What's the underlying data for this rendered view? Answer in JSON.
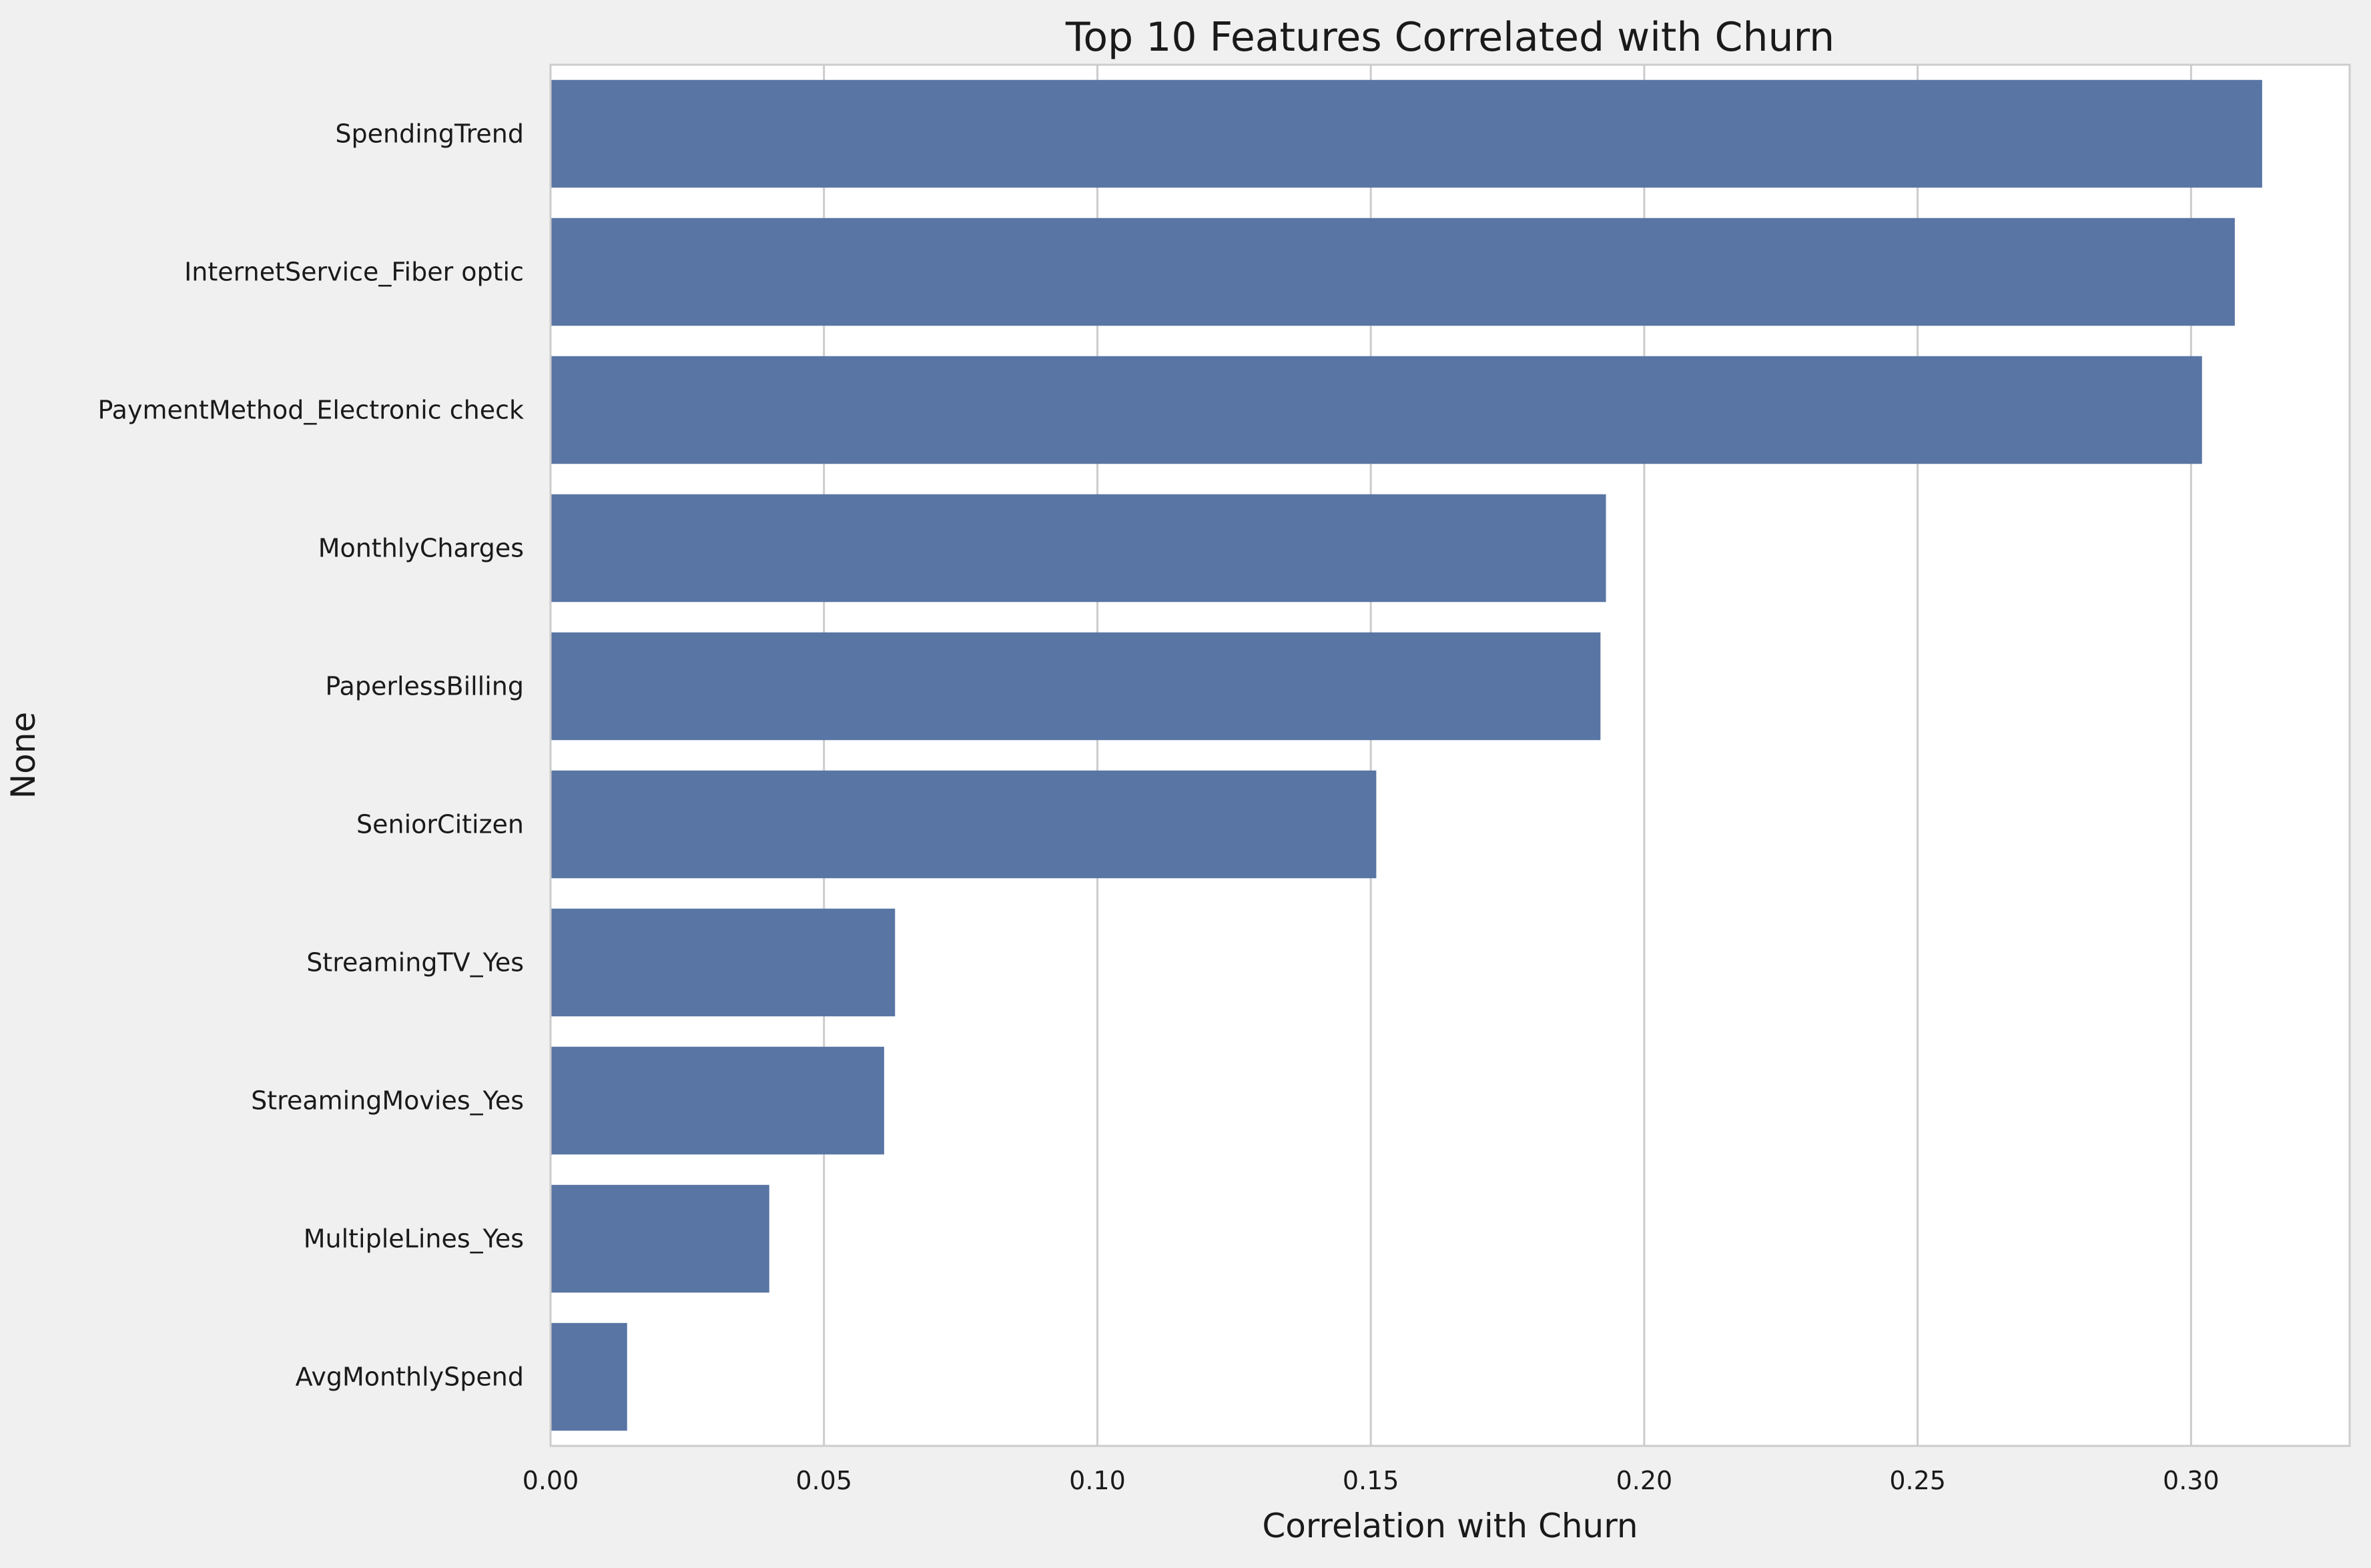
{
  "chart_data": {
    "type": "bar",
    "orientation": "horizontal",
    "title": "Top 10 Features Correlated with Churn",
    "xlabel": "Correlation with Churn",
    "ylabel": "None",
    "xlim": [
      0,
      0.329
    ],
    "xticks": [
      0.0,
      0.05,
      0.1,
      0.15,
      0.2,
      0.25,
      0.3
    ],
    "xtick_labels": [
      "0.00",
      "0.05",
      "0.10",
      "0.15",
      "0.20",
      "0.25",
      "0.30"
    ],
    "grid": "vertical",
    "categories": [
      "SpendingTrend",
      "InternetService_Fiber optic",
      "PaymentMethod_Electronic check",
      "MonthlyCharges",
      "PaperlessBilling",
      "SeniorCitizen",
      "StreamingTV_Yes",
      "StreamingMovies_Yes",
      "MultipleLines_Yes",
      "AvgMonthlySpend"
    ],
    "values": [
      0.313,
      0.308,
      0.302,
      0.193,
      0.192,
      0.151,
      0.063,
      0.061,
      0.04,
      0.014
    ],
    "bar_color": "#5975a4",
    "background_color": "#ffffff",
    "figure_background_color": "#f0f0f0",
    "grid_color": "#cccccc"
  }
}
